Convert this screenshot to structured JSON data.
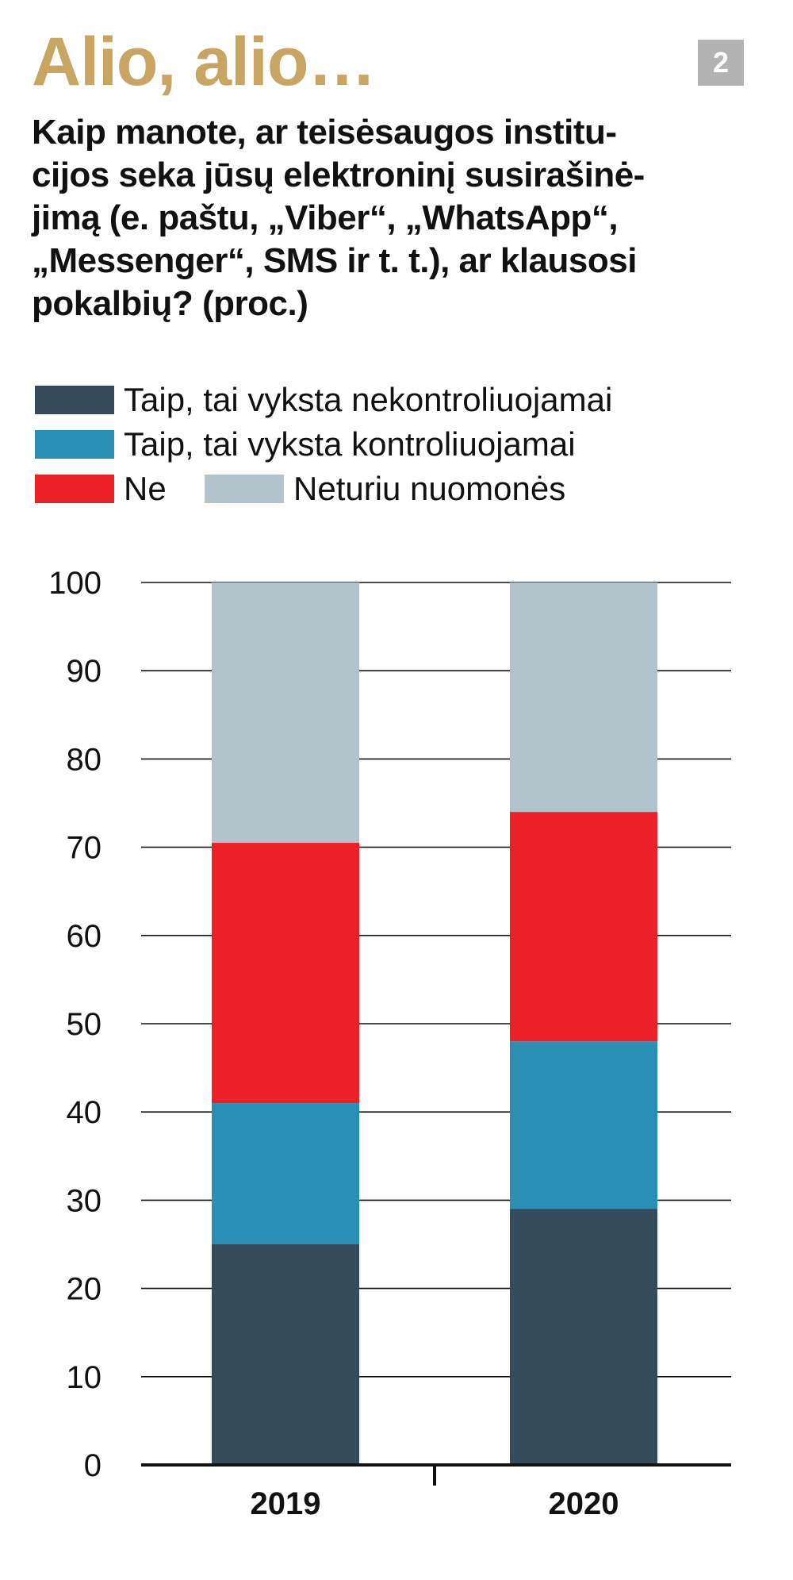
{
  "header": {
    "headline": "Alio, alio…",
    "page_number": "2",
    "headline_color": "#c9a563",
    "badge_color": "#b3b3b3"
  },
  "chart_data": {
    "type": "bar",
    "stacked": true,
    "title": "Kaip manote, ar  teisėsaugos institucijos seka jūsų elektroninį susirašinėjimą (e. paštu, „Viber“, „WhatsApp“, „Messenger“, SMS ir t. t.), ar klausosi pokalbių? (proc.)",
    "title_lines": [
      "Kaip manote, ar  teisėsaugos institu-",
      "cijos seka jūsų elektroninį susirašinė-",
      "jimą (e. paštu, „Viber“, „WhatsApp“,",
      "„Messenger“, SMS ir t. t.), ar klausosi",
      "pokalbių? (proc.)"
    ],
    "categories": [
      "2019",
      "2020"
    ],
    "ylim": [
      0,
      100
    ],
    "yticks": [
      0,
      10,
      20,
      30,
      40,
      50,
      60,
      70,
      80,
      90,
      100
    ],
    "grid": true,
    "legend_position": "top",
    "series": [
      {
        "name": "Taip, tai vyksta nekontroliuojamai",
        "color": "#344b5c",
        "values": [
          25,
          29
        ]
      },
      {
        "name": "Taip, tai vyksta kontroliuojamai",
        "color": "#2a8fb2",
        "values": [
          16,
          19
        ]
      },
      {
        "name": "Ne",
        "color": "#eb2129",
        "values": [
          29.5,
          26
        ]
      },
      {
        "name": "Neturiu nuomonės",
        "color": "#b2c3cc",
        "values": [
          29.5,
          26
        ]
      }
    ]
  }
}
